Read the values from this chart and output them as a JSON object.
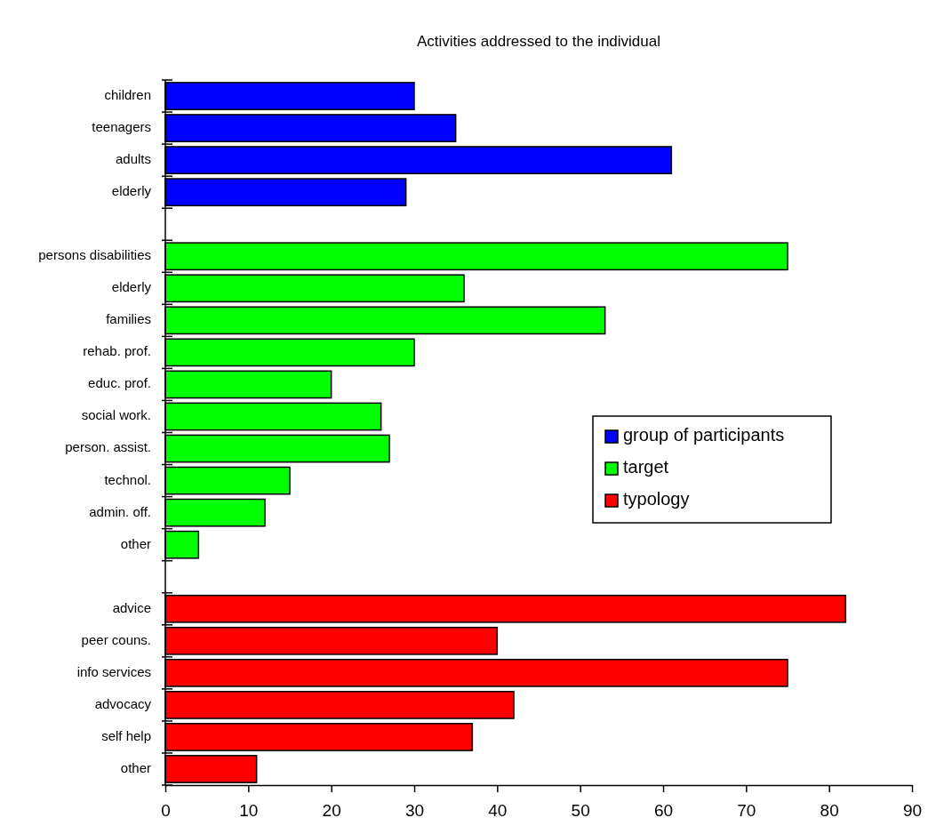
{
  "chart_data": {
    "type": "bar",
    "orientation": "horizontal",
    "title": "Activities addressed to the individual",
    "categories": [
      "children",
      "teenagers",
      "adults",
      "elderly",
      null,
      "persons disabilities",
      "elderly",
      "families",
      "rehab. prof.",
      "educ. prof.",
      "social work.",
      "person. assist.",
      "technol.",
      "admin. off.",
      "other",
      null,
      "advice",
      "peer couns.",
      "info services",
      "advocacy",
      "self help",
      "other"
    ],
    "series": [
      {
        "name": "group of participants",
        "color": "#0000ff",
        "values": [
          30,
          35,
          61,
          29,
          null,
          null,
          null,
          null,
          null,
          null,
          null,
          null,
          null,
          null,
          null,
          null,
          null,
          null,
          null,
          null,
          null,
          null
        ]
      },
      {
        "name": "target",
        "color": "#00ff00",
        "values": [
          null,
          null,
          null,
          null,
          null,
          75,
          36,
          53,
          30,
          20,
          26,
          27,
          15,
          12,
          4,
          null,
          null,
          null,
          null,
          null,
          null,
          null
        ]
      },
      {
        "name": "typology",
        "color": "#ff0000",
        "values": [
          null,
          null,
          null,
          null,
          null,
          null,
          null,
          null,
          null,
          null,
          null,
          null,
          null,
          null,
          null,
          null,
          82,
          40,
          75,
          42,
          37,
          11
        ]
      }
    ],
    "xlim": [
      0,
      90
    ],
    "xticks": [
      0,
      10,
      20,
      30,
      40,
      50,
      60,
      70,
      80,
      90
    ],
    "grid": false,
    "legend": "right"
  }
}
